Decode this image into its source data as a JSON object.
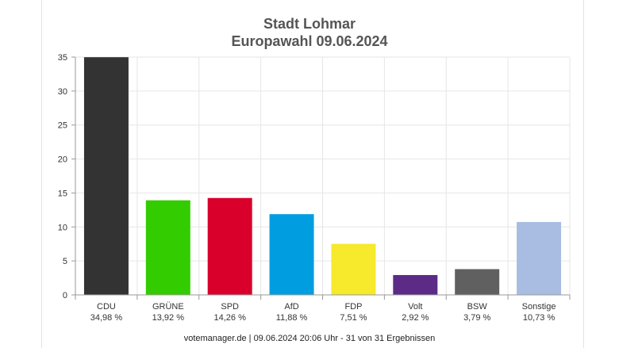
{
  "chart_data": {
    "type": "bar",
    "title": "Stadt Lohmar",
    "subtitle": "Europawahl 09.06.2024",
    "categories": [
      "CDU",
      "GRÜNE",
      "SPD",
      "AfD",
      "FDP",
      "Volt",
      "BSW",
      "Sonstige"
    ],
    "values": [
      34.98,
      13.92,
      14.26,
      11.88,
      7.51,
      2.92,
      3.79,
      10.73
    ],
    "value_labels": [
      "34,98 %",
      "13,92 %",
      "14,26 %",
      "11,88 %",
      "7,51 %",
      "2,92 %",
      "3,79 %",
      "10,73 %"
    ],
    "colors": [
      "#333333",
      "#33cc00",
      "#d9002b",
      "#009ee0",
      "#f7e92c",
      "#5c2b86",
      "#606060",
      "#a9bde3"
    ],
    "ylim": [
      0,
      35
    ],
    "yticks": [
      0,
      5,
      10,
      15,
      20,
      25,
      30,
      35
    ],
    "grid": true,
    "legend": "none"
  },
  "footer": "votemanager.de | 09.06.2024 20:06 Uhr - 31 von 31 Ergebnissen"
}
